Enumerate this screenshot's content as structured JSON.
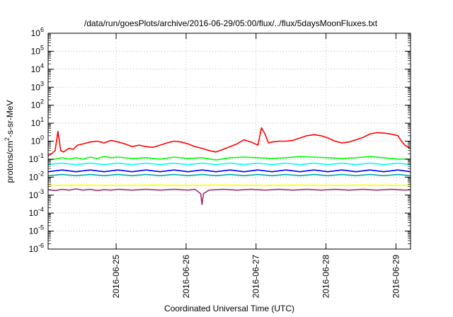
{
  "chart_data": {
    "type": "line",
    "title": "/data/run/goesPlots/archive/2016-06-29/05:00/flux/../flux/5daysMoonFluxes.txt",
    "xlabel": "Coordinated Universal Time (UTC)",
    "ylabel_parts": [
      "protons/cm",
      "2",
      "-s-sr-MeV"
    ],
    "y_scale": "log",
    "ylim_exp": [
      -6,
      6
    ],
    "y_tick_exponents": [
      -6,
      -5,
      -4,
      -3,
      -2,
      -1,
      0,
      1,
      2,
      3,
      4,
      5,
      6
    ],
    "y_tick_base": "10",
    "xlim": [
      "2016-06-24T00:40",
      "2016-06-29T05:00"
    ],
    "x_ticks": [
      "2016-06-25",
      "2016-06-26",
      "2016-06-27",
      "2016-06-28",
      "2016-06-29"
    ],
    "grid": true,
    "legend": "none",
    "series": [
      {
        "color": "#ff0000",
        "values": [
          [
            0.0,
            0.15
          ],
          [
            0.05,
            0.2
          ],
          [
            0.1,
            0.3
          ],
          [
            0.14,
            3.5
          ],
          [
            0.18,
            0.3
          ],
          [
            0.22,
            0.25
          ],
          [
            0.3,
            0.4
          ],
          [
            0.36,
            0.35
          ],
          [
            0.42,
            0.6
          ],
          [
            0.5,
            0.7
          ],
          [
            0.6,
            0.9
          ],
          [
            0.7,
            1.0
          ],
          [
            0.8,
            0.8
          ],
          [
            0.9,
            1.1
          ],
          [
            1.0,
            0.9
          ],
          [
            1.1,
            0.7
          ],
          [
            1.2,
            0.5
          ],
          [
            1.3,
            0.6
          ],
          [
            1.4,
            0.5
          ],
          [
            1.5,
            0.45
          ],
          [
            1.6,
            0.6
          ],
          [
            1.7,
            0.8
          ],
          [
            1.8,
            1.0
          ],
          [
            1.9,
            0.9
          ],
          [
            2.0,
            0.7
          ],
          [
            2.1,
            0.5
          ],
          [
            2.2,
            0.4
          ],
          [
            2.3,
            0.3
          ],
          [
            2.4,
            0.25
          ],
          [
            2.5,
            0.35
          ],
          [
            2.6,
            0.5
          ],
          [
            2.7,
            0.7
          ],
          [
            2.8,
            1.2
          ],
          [
            2.9,
            0.9
          ],
          [
            3.0,
            0.6
          ],
          [
            3.05,
            5.5
          ],
          [
            3.1,
            2.5
          ],
          [
            3.15,
            0.8
          ],
          [
            3.2,
            0.9
          ],
          [
            3.3,
            1.0
          ],
          [
            3.4,
            1.0
          ],
          [
            3.5,
            1.1
          ],
          [
            3.6,
            1.5
          ],
          [
            3.7,
            2.0
          ],
          [
            3.8,
            2.3
          ],
          [
            3.9,
            2.0
          ],
          [
            4.0,
            1.5
          ],
          [
            4.1,
            1.0
          ],
          [
            4.2,
            0.8
          ],
          [
            4.3,
            0.9
          ],
          [
            4.4,
            1.2
          ],
          [
            4.5,
            1.6
          ],
          [
            4.6,
            2.5
          ],
          [
            4.7,
            3.0
          ],
          [
            4.8,
            2.8
          ],
          [
            4.9,
            2.5
          ],
          [
            5.0,
            2.0
          ],
          [
            5.05,
            1.0
          ],
          [
            5.1,
            0.6
          ],
          [
            5.15,
            0.45
          ],
          [
            5.18,
            0.4
          ]
        ]
      },
      {
        "color": "#00ff00",
        "values": [
          [
            0.0,
            0.09
          ],
          [
            0.1,
            0.1
          ],
          [
            0.2,
            0.12
          ],
          [
            0.3,
            0.1
          ],
          [
            0.4,
            0.12
          ],
          [
            0.5,
            0.1
          ],
          [
            0.6,
            0.13
          ],
          [
            0.7,
            0.11
          ],
          [
            0.8,
            0.14
          ],
          [
            0.9,
            0.12
          ],
          [
            1.0,
            0.13
          ],
          [
            1.2,
            0.11
          ],
          [
            1.4,
            0.12
          ],
          [
            1.6,
            0.1
          ],
          [
            1.8,
            0.13
          ],
          [
            2.0,
            0.11
          ],
          [
            2.2,
            0.12
          ],
          [
            2.4,
            0.09
          ],
          [
            2.6,
            0.12
          ],
          [
            2.8,
            0.13
          ],
          [
            3.0,
            0.12
          ],
          [
            3.2,
            0.11
          ],
          [
            3.4,
            0.12
          ],
          [
            3.6,
            0.14
          ],
          [
            3.8,
            0.13
          ],
          [
            4.0,
            0.12
          ],
          [
            4.2,
            0.11
          ],
          [
            4.4,
            0.12
          ],
          [
            4.6,
            0.14
          ],
          [
            4.8,
            0.12
          ],
          [
            5.0,
            0.1
          ],
          [
            5.18,
            0.1
          ]
        ]
      },
      {
        "color": "#00ffff",
        "values": [
          [
            0.0,
            0.05
          ],
          [
            0.2,
            0.06
          ],
          [
            0.4,
            0.05
          ],
          [
            0.6,
            0.06
          ],
          [
            0.8,
            0.05
          ],
          [
            1.0,
            0.06
          ],
          [
            1.2,
            0.05
          ],
          [
            1.4,
            0.06
          ],
          [
            1.6,
            0.05
          ],
          [
            1.8,
            0.06
          ],
          [
            2.0,
            0.05
          ],
          [
            2.2,
            0.06
          ],
          [
            2.4,
            0.05
          ],
          [
            2.6,
            0.06
          ],
          [
            2.8,
            0.05
          ],
          [
            3.0,
            0.06
          ],
          [
            3.2,
            0.05
          ],
          [
            3.4,
            0.06
          ],
          [
            3.6,
            0.05
          ],
          [
            3.8,
            0.06
          ],
          [
            4.0,
            0.05
          ],
          [
            4.2,
            0.06
          ],
          [
            4.4,
            0.05
          ],
          [
            4.6,
            0.06
          ],
          [
            4.8,
            0.05
          ],
          [
            5.0,
            0.06
          ],
          [
            5.18,
            0.05
          ]
        ]
      },
      {
        "color": "#0000ff",
        "values": [
          [
            0.0,
            0.02
          ],
          [
            0.2,
            0.025
          ],
          [
            0.4,
            0.02
          ],
          [
            0.6,
            0.025
          ],
          [
            0.8,
            0.02
          ],
          [
            1.0,
            0.025
          ],
          [
            1.2,
            0.02
          ],
          [
            1.4,
            0.025
          ],
          [
            1.6,
            0.02
          ],
          [
            1.8,
            0.025
          ],
          [
            2.0,
            0.02
          ],
          [
            2.2,
            0.025
          ],
          [
            2.4,
            0.02
          ],
          [
            2.6,
            0.025
          ],
          [
            2.8,
            0.02
          ],
          [
            3.0,
            0.025
          ],
          [
            3.2,
            0.02
          ],
          [
            3.4,
            0.025
          ],
          [
            3.6,
            0.02
          ],
          [
            3.8,
            0.025
          ],
          [
            4.0,
            0.02
          ],
          [
            4.2,
            0.025
          ],
          [
            4.4,
            0.02
          ],
          [
            4.6,
            0.025
          ],
          [
            4.8,
            0.02
          ],
          [
            5.0,
            0.025
          ],
          [
            5.18,
            0.02
          ]
        ]
      },
      {
        "color": "#00aaaa",
        "values": [
          [
            0.0,
            0.012
          ],
          [
            0.2,
            0.014
          ],
          [
            0.4,
            0.012
          ],
          [
            0.6,
            0.014
          ],
          [
            0.8,
            0.012
          ],
          [
            1.0,
            0.014
          ],
          [
            1.2,
            0.012
          ],
          [
            1.4,
            0.014
          ],
          [
            1.6,
            0.012
          ],
          [
            1.8,
            0.014
          ],
          [
            2.0,
            0.012
          ],
          [
            2.2,
            0.014
          ],
          [
            2.4,
            0.012
          ],
          [
            2.6,
            0.014
          ],
          [
            2.8,
            0.012
          ],
          [
            3.0,
            0.014
          ],
          [
            3.2,
            0.012
          ],
          [
            3.4,
            0.014
          ],
          [
            3.6,
            0.012
          ],
          [
            3.8,
            0.014
          ],
          [
            4.0,
            0.012
          ],
          [
            4.2,
            0.014
          ],
          [
            4.4,
            0.012
          ],
          [
            4.6,
            0.014
          ],
          [
            4.8,
            0.012
          ],
          [
            5.0,
            0.014
          ],
          [
            5.18,
            0.012
          ]
        ]
      },
      {
        "color": "#ffff00",
        "values": [
          [
            0.0,
            0.0035
          ],
          [
            0.5,
            0.0036
          ],
          [
            1.0,
            0.0035
          ],
          [
            1.5,
            0.0036
          ],
          [
            2.0,
            0.0035
          ],
          [
            2.5,
            0.0036
          ],
          [
            3.0,
            0.0035
          ],
          [
            3.5,
            0.0036
          ],
          [
            4.0,
            0.0035
          ],
          [
            4.5,
            0.0036
          ],
          [
            5.0,
            0.0035
          ],
          [
            5.18,
            0.0035
          ]
        ]
      },
      {
        "color": "#a0306a",
        "values": [
          [
            0.0,
            0.002
          ],
          [
            0.1,
            0.0018
          ],
          [
            0.2,
            0.0021
          ],
          [
            0.3,
            0.0019
          ],
          [
            0.4,
            0.0022
          ],
          [
            0.5,
            0.0019
          ],
          [
            0.6,
            0.0021
          ],
          [
            0.7,
            0.0018
          ],
          [
            0.8,
            0.002
          ],
          [
            0.9,
            0.0019
          ],
          [
            1.0,
            0.0021
          ],
          [
            1.2,
            0.0019
          ],
          [
            1.4,
            0.0021
          ],
          [
            1.6,
            0.0019
          ],
          [
            1.8,
            0.0021
          ],
          [
            2.0,
            0.0019
          ],
          [
            2.1,
            0.0021
          ],
          [
            2.18,
            0.0012
          ],
          [
            2.2,
            0.0003
          ],
          [
            2.22,
            0.0012
          ],
          [
            2.3,
            0.0019
          ],
          [
            2.5,
            0.0021
          ],
          [
            2.7,
            0.0019
          ],
          [
            2.9,
            0.0021
          ],
          [
            3.1,
            0.0019
          ],
          [
            3.3,
            0.0021
          ],
          [
            3.5,
            0.0019
          ],
          [
            3.7,
            0.0021
          ],
          [
            3.9,
            0.0019
          ],
          [
            4.1,
            0.0021
          ],
          [
            4.3,
            0.0019
          ],
          [
            4.5,
            0.0021
          ],
          [
            4.7,
            0.0019
          ],
          [
            4.9,
            0.0021
          ],
          [
            5.1,
            0.0019
          ],
          [
            5.18,
            0.002
          ]
        ]
      }
    ]
  }
}
